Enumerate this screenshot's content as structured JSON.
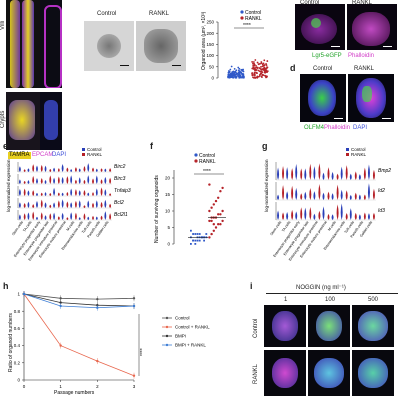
{
  "panel_letters": {
    "b": "",
    "c": "",
    "d": "d",
    "e": "e",
    "f": "f",
    "g": "g",
    "h": "h",
    "i": "i"
  },
  "panel_a": {
    "villi": "Villi",
    "crypts": "Crypts",
    "legend": {
      "tamra": "TAMRA",
      "epcam": "EPCAM",
      "dapi": "DAPI"
    },
    "colors": {
      "yellow": "#e8d020",
      "magenta": "#d23cc8",
      "blue": "#3d4fd8"
    }
  },
  "panel_b": {
    "control": "Control",
    "rankl": "RANKL"
  },
  "panel_c": {
    "chart_data": {
      "type": "scatter",
      "ylabel": "Organoid area (µm², ×10³)",
      "legend": [
        "Control",
        "RANKL"
      ],
      "significance": "****",
      "yticks": [
        0,
        50,
        100,
        150,
        200,
        250
      ],
      "ylim": [
        0,
        250
      ],
      "colors": {
        "control": "#2f58c8",
        "rankl": "#b6242a"
      }
    }
  },
  "panel_top_right": {
    "col1": "Control",
    "col2": "RANKL",
    "legend_lgr5": "Lgr5-eGFP",
    "legend_phalloidin": "Phalloidin"
  },
  "panel_d": {
    "control": "Control",
    "rankl": "RANKL",
    "legend_olfm4": "OLFM4",
    "legend_phalloidin": "Phalloidin",
    "legend_dapi": "DAPI"
  },
  "panel_e": {
    "chart_data": {
      "type": "violin",
      "legend": [
        "Control",
        "RANKL"
      ],
      "ylabel": "log-normalized expression",
      "genes": [
        "Birc2",
        "Birc3",
        "Tnfaip3",
        "Bcl2",
        "Bcl2l1"
      ],
      "categories": [
        "Stem cells",
        "TA cells",
        "Enterocyte progenitor early",
        "Enterocyte progenitor late",
        "Enterocyte immature proximal",
        "Enterocyte mature proximal",
        "M cells",
        "Enteroendocrine cells",
        "Tuft cells",
        "Paneth cells",
        "Goblet cells"
      ],
      "colors": {
        "control": "#2a3fb8",
        "rankl": "#b51f26"
      }
    }
  },
  "panel_f": {
    "chart_data": {
      "type": "scatter",
      "legend": [
        "Control",
        "RANKL"
      ],
      "ylabel": "Number of surviving organoids",
      "significance": "****",
      "yticks": [
        0,
        5,
        10,
        15,
        20
      ],
      "ylim": [
        0,
        20
      ],
      "means": {
        "control": 2,
        "rankl": 8
      },
      "colors": {
        "control": "#2f58c8",
        "rankl": "#b6242a"
      }
    }
  },
  "panel_g": {
    "chart_data": {
      "type": "violin",
      "legend": [
        "Control",
        "RANKL"
      ],
      "ylabel": "log-normalized expression",
      "genes": [
        "Bmp2",
        "Id2",
        "Id3"
      ],
      "categories": [
        "Stem cells",
        "TA cells",
        "Enterocyte progenitor early",
        "Enterocyte progenitor late",
        "Enterocyte immature proximal",
        "Enterocyte mature proximal",
        "M cells",
        "Enteroendocrine cells",
        "Tuft cells",
        "Paneth cells",
        "Goblet cells"
      ],
      "colors": {
        "control": "#2a3fb8",
        "rankl": "#b51f26"
      }
    }
  },
  "panel_h": {
    "chart_data": {
      "type": "line",
      "xlabel": "Passage numbers",
      "ylabel": "Ratio of organoid numbers",
      "x": [
        0,
        1,
        2,
        3
      ],
      "xlim": [
        0,
        3
      ],
      "ylim": [
        0,
        1.0
      ],
      "xticks": [
        0,
        1,
        2,
        3
      ],
      "yticks": [
        0,
        0.2,
        0.4,
        0.6,
        0.8,
        1.0
      ],
      "significance": "****",
      "series": [
        {
          "name": "Control",
          "values": [
            1.0,
            0.95,
            0.94,
            0.95
          ],
          "color": "#555555"
        },
        {
          "name": "Control + RANKL",
          "values": [
            1.0,
            0.4,
            0.22,
            0.05
          ],
          "color": "#e8674e"
        },
        {
          "name": "BMPi",
          "values": [
            1.0,
            0.9,
            0.87,
            0.86
          ],
          "color": "#333333"
        },
        {
          "name": "BMPi + RANKL",
          "values": [
            1.0,
            0.86,
            0.84,
            0.86
          ],
          "color": "#3f7fd6"
        }
      ]
    }
  },
  "panel_i": {
    "title": "NOGGIN (ng ml⁻¹)",
    "doses": [
      "1",
      "100",
      "500"
    ],
    "rows": [
      "Control",
      "RANKL"
    ]
  }
}
